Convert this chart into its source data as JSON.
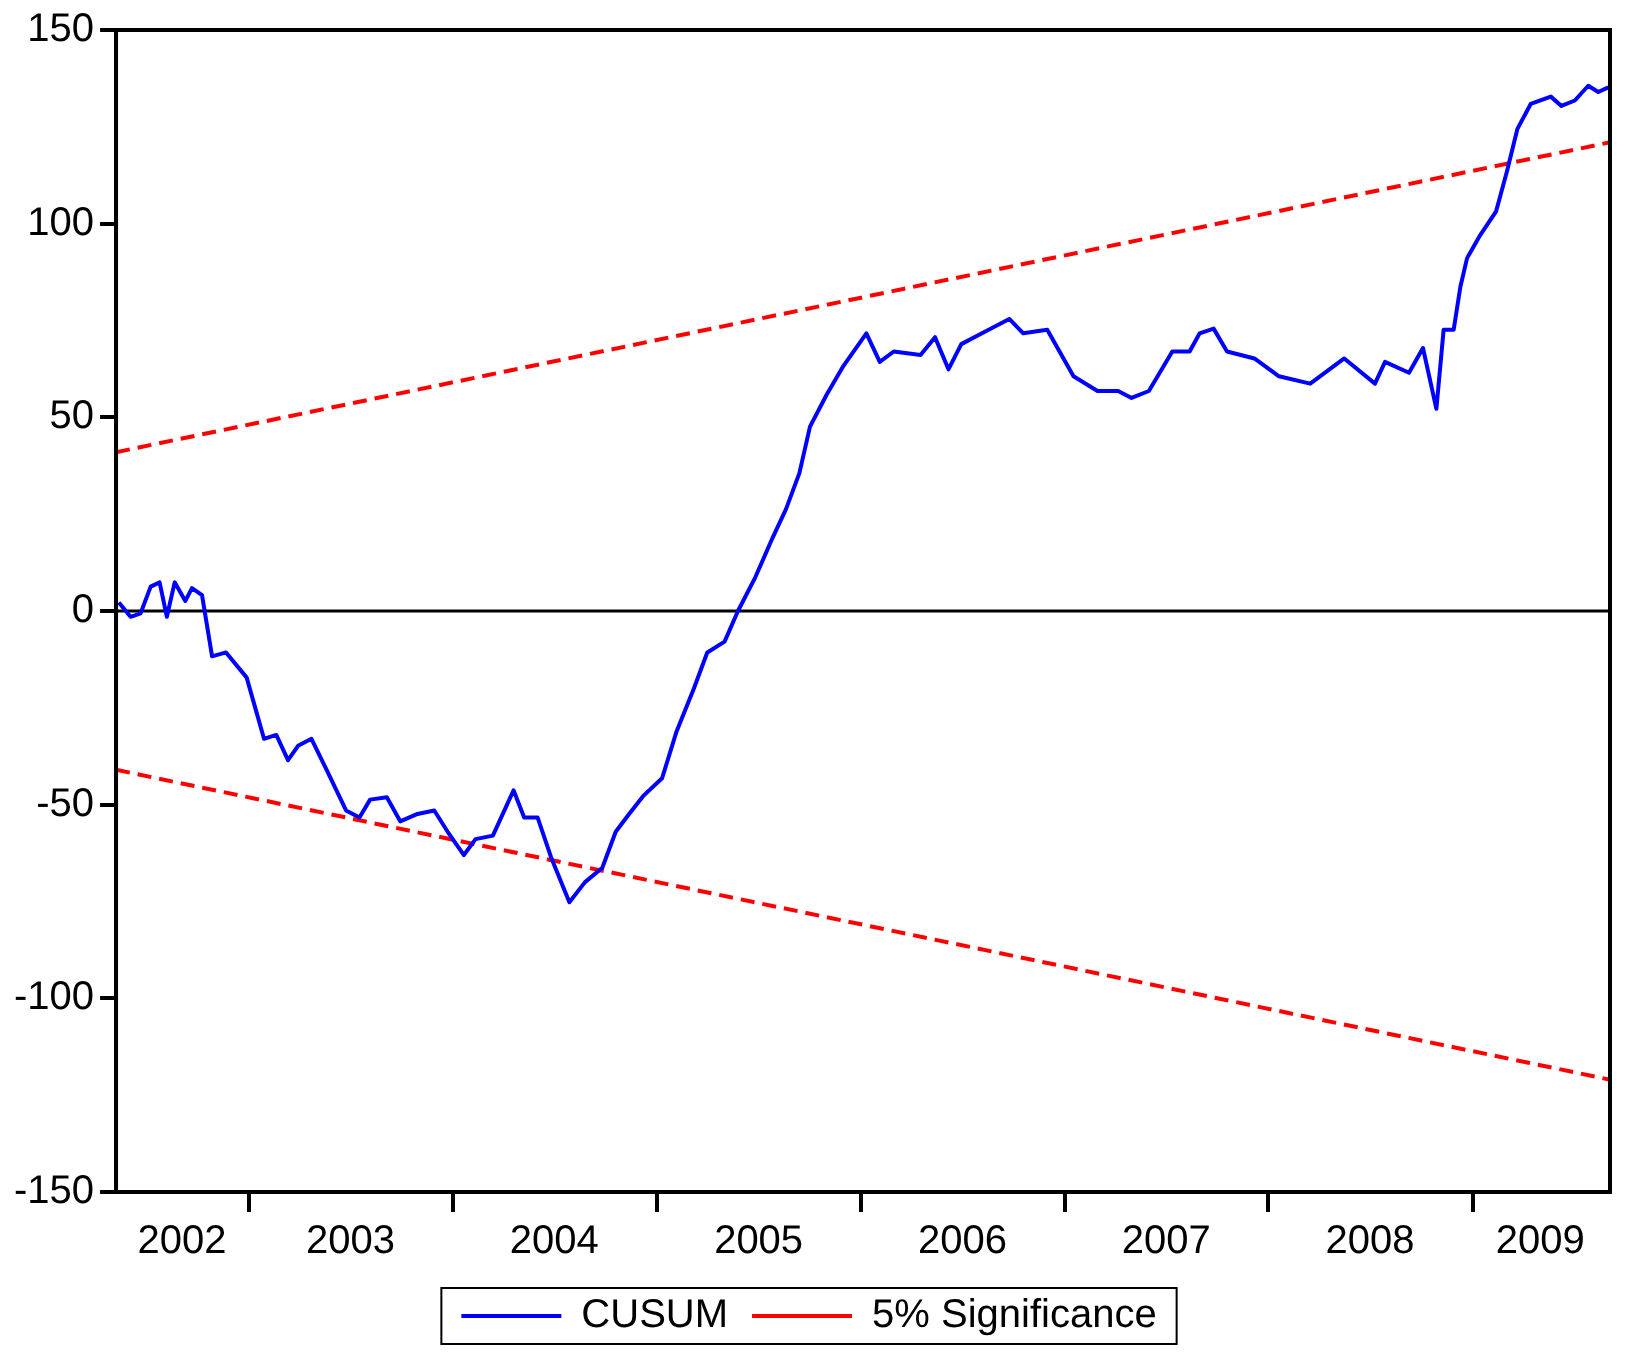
{
  "chart_data": {
    "type": "line",
    "xlim": [
      "2002-05-08",
      "2009-09-04"
    ],
    "ylim": [
      -150,
      150
    ],
    "yticks": [
      -150,
      -100,
      -50,
      0,
      50,
      100,
      150
    ],
    "xticks": [
      {
        "value": "2002-09-03",
        "label": "2002"
      },
      {
        "value": "2003-01-01",
        "label": null
      },
      {
        "value": "2003-07-02",
        "label": "2003"
      },
      {
        "value": "2004-01-01",
        "label": null
      },
      {
        "value": "2004-07-01",
        "label": "2004"
      },
      {
        "value": "2005-01-01",
        "label": null
      },
      {
        "value": "2005-07-02",
        "label": "2005"
      },
      {
        "value": "2006-01-01",
        "label": null
      },
      {
        "value": "2006-07-02",
        "label": "2006"
      },
      {
        "value": "2007-01-01",
        "label": null
      },
      {
        "value": "2007-07-02",
        "label": "2007"
      },
      {
        "value": "2008-01-01",
        "label": null
      },
      {
        "value": "2008-07-01",
        "label": "2008"
      },
      {
        "value": "2009-01-01",
        "label": null
      },
      {
        "value": "2009-05-02",
        "label": "2009"
      }
    ],
    "grid": false,
    "legend": "bottom",
    "line_style": "solid",
    "marker": "none",
    "ref_lines": [
      {
        "axis": "y",
        "value": 0,
        "label": null,
        "color": "#000000"
      }
    ],
    "series": [
      {
        "name": "CUSUM",
        "color": "#0000ff",
        "x": [
          "2002-05-13",
          "2002-06-03",
          "2002-06-21",
          "2002-07-09",
          "2002-07-25",
          "2002-08-07",
          "2002-08-21",
          "2002-09-09",
          "2002-09-21",
          "2002-10-09",
          "2002-10-27",
          "2002-11-21",
          "2002-12-28",
          "2003-01-28",
          "2003-02-19",
          "2003-03-12",
          "2003-03-30",
          "2003-04-23",
          "2003-05-18",
          "2003-06-24",
          "2003-07-18",
          "2003-08-06",
          "2003-09-05",
          "2003-09-29",
          "2003-10-30",
          "2003-11-29",
          "2003-12-23",
          "2004-01-21",
          "2004-02-11",
          "2004-03-13",
          "2004-04-19",
          "2004-05-08",
          "2004-06-01",
          "2004-06-25",
          "2004-07-28",
          "2004-08-25",
          "2004-09-25",
          "2004-10-19",
          "2004-11-12",
          "2004-12-07",
          "2005-01-10",
          "2005-02-05",
          "2005-03-08",
          "2005-04-01",
          "2005-05-02",
          "2005-05-26",
          "2005-06-26",
          "2005-07-27",
          "2005-08-20",
          "2005-09-13",
          "2005-10-02",
          "2005-11-01",
          "2005-12-01",
          "2006-01-11",
          "2006-02-04",
          "2006-03-01",
          "2006-04-18",
          "2006-05-14",
          "2006-06-07",
          "2006-06-30",
          "2006-08-06",
          "2006-09-24",
          "2006-10-19",
          "2006-12-01",
          "2007-01-17",
          "2007-03-01",
          "2007-04-07",
          "2007-05-01",
          "2007-06-01",
          "2007-07-13",
          "2007-08-13",
          "2007-08-31",
          "2007-09-25",
          "2007-10-19",
          "2007-12-07",
          "2008-01-20",
          "2008-03-16",
          "2008-05-16",
          "2008-07-10",
          "2008-07-28",
          "2008-09-09",
          "2008-10-04",
          "2008-10-28",
          "2008-11-10",
          "2008-11-28",
          "2008-12-10",
          "2008-12-22",
          "2009-01-13",
          "2009-02-12",
          "2009-03-03",
          "2009-03-22",
          "2009-04-15",
          "2009-05-21",
          "2009-06-09",
          "2009-07-03",
          "2009-07-27",
          "2009-08-14",
          "2009-09-01"
        ],
        "values": [
          2.2,
          -1.5,
          -0.6,
          6.3,
          7.4,
          -1.5,
          7.4,
          2.6,
          5.9,
          4.1,
          -11.7,
          -10.7,
          -17.2,
          -33,
          -32,
          -38.5,
          -34.8,
          -33,
          -40.4,
          -51.5,
          -53.3,
          -48.7,
          -48.1,
          -54.3,
          -52.4,
          -51.5,
          -57,
          -63,
          -58.9,
          -58,
          -46.3,
          -53.3,
          -53.3,
          -63.5,
          -75.2,
          -70,
          -66.3,
          -57,
          -52.4,
          -47.8,
          -43.2,
          -31.1,
          -20,
          -10.7,
          -7.9,
          0,
          8.7,
          18.9,
          26.3,
          35.6,
          47.6,
          55.9,
          63.3,
          71.7,
          64.3,
          67,
          66.1,
          70.7,
          62.4,
          68.9,
          71.7,
          75.4,
          71.7,
          72.6,
          60.6,
          56.8,
          56.8,
          55,
          56.8,
          67,
          67,
          71.7,
          72.9,
          67,
          65.2,
          60.6,
          58.7,
          65.2,
          58.7,
          64.3,
          61.5,
          67.9,
          52.2,
          72.6,
          72.6,
          83.7,
          91.1,
          96.7,
          103.2,
          113.3,
          124.4,
          130.9,
          132.8,
          130.4,
          131.8,
          135.6,
          134,
          135.2
        ]
      },
      {
        "name": "5% Significance",
        "color": "#ff0000",
        "line_style": "dashed",
        "x": [
          "2002-05-08",
          "2009-09-04"
        ],
        "values": [
          41,
          121
        ]
      },
      {
        "color": "#ff0000",
        "line_style": "dashed",
        "x": [
          "2002-05-08",
          "2009-09-04"
        ],
        "values": [
          -41,
          -121
        ]
      }
    ]
  }
}
